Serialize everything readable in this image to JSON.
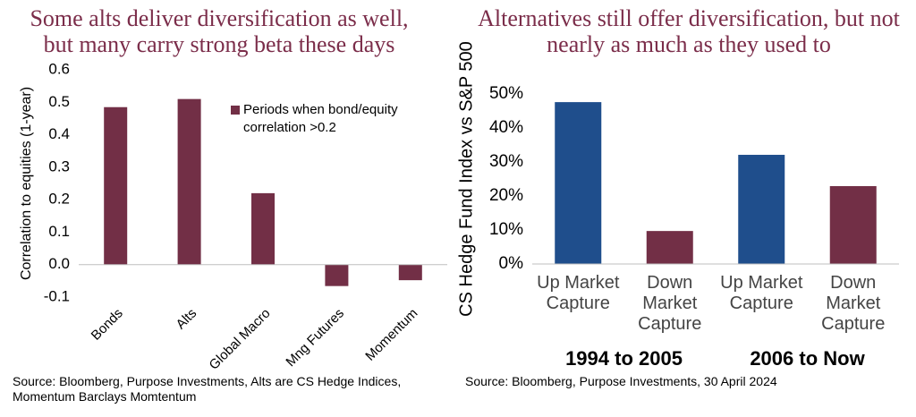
{
  "chart_data": [
    {
      "type": "bar",
      "title": "Some alts deliver diversification as well, but many carry strong beta these days",
      "ylabel": "Correlation to equities (1-year)",
      "categories": [
        "Bonds",
        "Alts",
        "Global Macro",
        "Mng Futures",
        "Momentum"
      ],
      "series": [
        {
          "name": "Periods when bond/equity correlation >0.2",
          "color": "#722f46",
          "values": [
            0.485,
            0.51,
            0.22,
            -0.066,
            -0.048
          ]
        }
      ],
      "ylim": [
        -0.1,
        0.6
      ],
      "yticks": [
        -0.1,
        {
          "value": 0,
          "label": "0.0"
        },
        0.1,
        0.2,
        0.3,
        0.4,
        0.5,
        0.6
      ],
      "grid": false,
      "source": "Source: Bloomberg, Purpose Investments, Alts are CS Hedge Indices, Momentum Barclays Momtentum"
    },
    {
      "type": "bar",
      "title": "Alternatives still offer diversification, but not nearly as much as they used to",
      "ylabel": "CS Hedge Fund Index vs S&P 500",
      "categories": [
        "Up Market Capture",
        "Down Market Capture",
        "Up Market Capture",
        "Down Market Capture"
      ],
      "values": [
        47.6,
        9.7,
        32.1,
        22.9
      ],
      "colors": [
        "#1f4e8c",
        "#722f46",
        "#1f4e8c",
        "#722f46"
      ],
      "group_labels": [
        "1994 to 2005",
        "2006 to Now"
      ],
      "ylim": [
        0,
        50
      ],
      "yticks": [
        {
          "value": 0,
          "label": "0%"
        },
        {
          "value": 10,
          "label": "10%"
        },
        {
          "value": 20,
          "label": "20%"
        },
        {
          "value": 30,
          "label": "30%"
        },
        {
          "value": 40,
          "label": "40%"
        },
        {
          "value": 50,
          "label": "50%"
        }
      ],
      "grid": false,
      "source": "Source: Bloomberg, Purpose Investments, 30 April 2024"
    }
  ]
}
